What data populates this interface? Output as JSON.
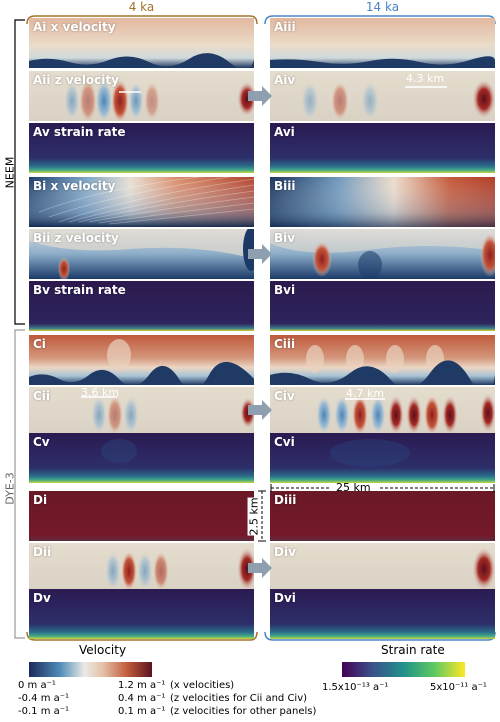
{
  "columns": {
    "left": "4 ka",
    "right": "14 ka"
  },
  "groups": {
    "neem": "NEEM",
    "dye3": "DYE-3"
  },
  "panels": {
    "Ai": "Ai x velocity",
    "Aii": "Aii z velocity",
    "Av": "Av strain rate",
    "Aiii": "Aiii",
    "Aiv": "Aiv",
    "Avi": "Avi",
    "Bi": "Bi x velocity",
    "Bii": "Bii z velocity",
    "Bv": "Bv strain rate",
    "Biii": "Biii",
    "Biv": "Biv",
    "Bvi": "Bvi",
    "Ci": "Ci",
    "Cii": "Cii",
    "Cv": "Cv",
    "Ciii": "Ciii",
    "Civ": "Civ",
    "Cvi": "Cvi",
    "Di": "Di",
    "Dii": "Dii",
    "Dv": "Dv",
    "Diii": "Diii",
    "Div": "Div",
    "Dvi": "Dvi"
  },
  "scales": {
    "aiv": "4.3 km",
    "cii": "3.6 km",
    "civ": "4.7 km",
    "width": "25 km",
    "depth": "2.5 km"
  },
  "bottom": {
    "velocity": "Velocity",
    "strain": "Strain rate"
  },
  "velocity_colorbar": {
    "rows": [
      {
        "min": "0 m a⁻¹",
        "max": "1.2 m a⁻¹",
        "note": "(x velocities)"
      },
      {
        "min": "-0.4 m a⁻¹",
        "max": "0.4 m a⁻¹",
        "note": "(z velocities for Cii and Civ)"
      },
      {
        "min": "-0.1 m a⁻¹",
        "max": "0.1 m a⁻¹",
        "note": "(z velocities for other panels)"
      }
    ]
  },
  "strain_colorbar": {
    "min": "1.5x10⁻¹³ a⁻¹",
    "max": "5x10⁻¹¹ a⁻¹"
  },
  "colors": {
    "left_bracket": "#a4732d",
    "right_bracket": "#4a86c5",
    "arrow": "#8ea0b0"
  }
}
